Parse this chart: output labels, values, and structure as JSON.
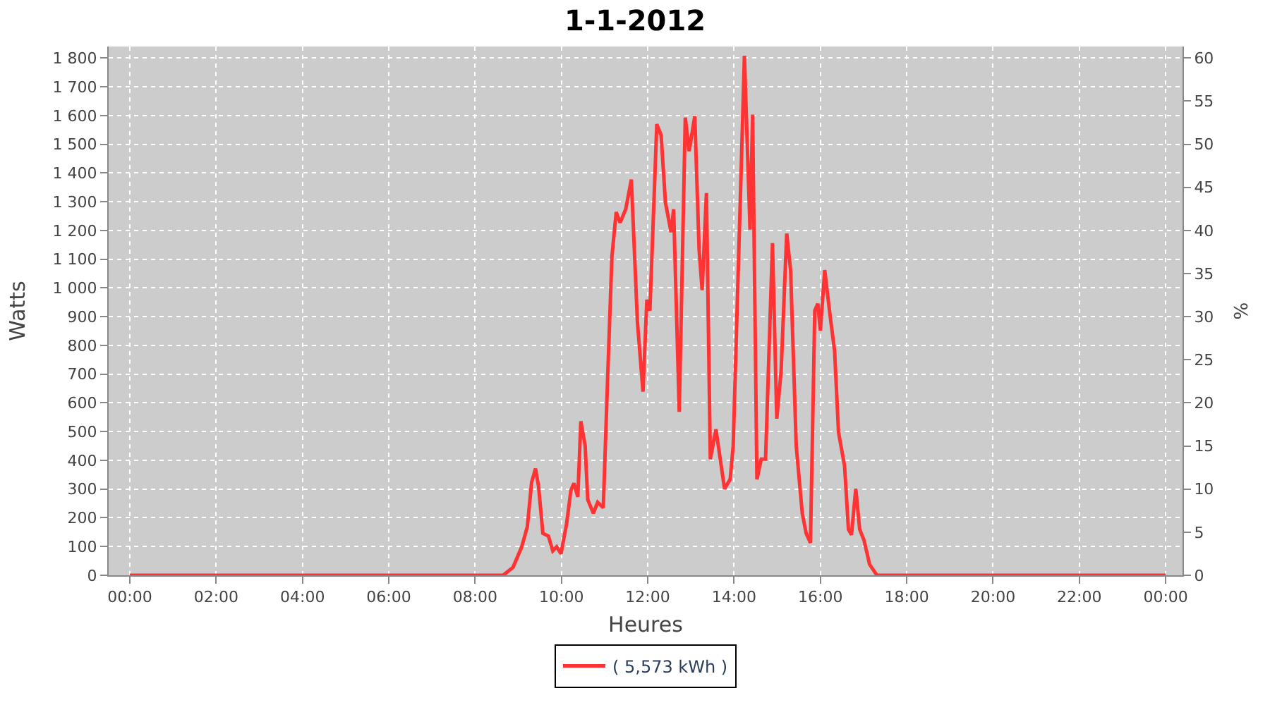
{
  "chart_data": {
    "type": "line",
    "title": "1-1-2012",
    "xlabel": "Heures",
    "ylabel": "Watts",
    "y2label": "%",
    "x": [
      0,
      8.65,
      8.88,
      9.08,
      9.21,
      9.31,
      9.4,
      9.47,
      9.57,
      9.7,
      9.8,
      9.89,
      9.99,
      10.12,
      10.22,
      10.29,
      10.38,
      10.45,
      10.55,
      10.61,
      10.74,
      10.84,
      10.97,
      11.07,
      11.17,
      11.27,
      11.36,
      11.49,
      11.62,
      11.76,
      11.89,
      11.98,
      12.05,
      12.21,
      12.31,
      12.41,
      12.54,
      12.6,
      12.73,
      12.87,
      12.96,
      13.09,
      13.19,
      13.26,
      13.36,
      13.45,
      13.58,
      13.78,
      13.91,
      13.98,
      14.07,
      14.17,
      14.24,
      14.37,
      14.43,
      14.53,
      14.63,
      14.73,
      14.89,
      14.99,
      15.09,
      15.22,
      15.31,
      15.44,
      15.58,
      15.67,
      15.77,
      15.87,
      15.94,
      16.0,
      16.1,
      16.23,
      16.33,
      16.42,
      16.56,
      16.65,
      16.72,
      16.82,
      16.91,
      17.01,
      17.14,
      17.31,
      24
    ],
    "series": [
      {
        "name": "( 5,573 kWh )",
        "color": "#ff3333",
        "values": [
          0,
          0,
          28,
          99,
          169,
          324,
          371,
          310,
          146,
          136,
          85,
          99,
          75,
          179,
          296,
          320,
          273,
          536,
          451,
          263,
          216,
          254,
          235,
          682,
          1109,
          1264,
          1227,
          1274,
          1377,
          884,
          639,
          959,
          921,
          1570,
          1532,
          1297,
          1194,
          1274,
          569,
          1593,
          1476,
          1598,
          1133,
          992,
          1330,
          404,
          508,
          301,
          334,
          451,
          921,
          1438,
          1808,
          1203,
          1603,
          334,
          404,
          404,
          1156,
          545,
          710,
          1189,
          1062,
          451,
          216,
          146,
          113,
          921,
          945,
          851,
          1062,
          898,
          780,
          498,
          381,
          160,
          141,
          301,
          160,
          122,
          38,
          0,
          0
        ]
      }
    ],
    "xlim": [
      -0.49,
      24.39
    ],
    "xticks": [
      {
        "value": 0,
        "label": "00:00"
      },
      {
        "value": 2,
        "label": "02:00"
      },
      {
        "value": 4,
        "label": "04:00"
      },
      {
        "value": 6,
        "label": "06:00"
      },
      {
        "value": 8,
        "label": "08:00"
      },
      {
        "value": 10,
        "label": "10:00"
      },
      {
        "value": 12,
        "label": "12:00"
      },
      {
        "value": 14,
        "label": "14:00"
      },
      {
        "value": 16,
        "label": "16:00"
      },
      {
        "value": 18,
        "label": "18:00"
      },
      {
        "value": 20,
        "label": "20:00"
      },
      {
        "value": 22,
        "label": "22:00"
      },
      {
        "value": 24,
        "label": "00:00"
      }
    ],
    "ylim": [
      0,
      1840
    ],
    "yticks": [
      {
        "value": 0,
        "label": "0"
      },
      {
        "value": 100,
        "label": "100"
      },
      {
        "value": 200,
        "label": "200"
      },
      {
        "value": 300,
        "label": "300"
      },
      {
        "value": 400,
        "label": "400"
      },
      {
        "value": 500,
        "label": "500"
      },
      {
        "value": 600,
        "label": "600"
      },
      {
        "value": 700,
        "label": "700"
      },
      {
        "value": 800,
        "label": "800"
      },
      {
        "value": 900,
        "label": "900"
      },
      {
        "value": 1000,
        "label": "1 000"
      },
      {
        "value": 1100,
        "label": "1 100"
      },
      {
        "value": 1200,
        "label": "1 200"
      },
      {
        "value": 1300,
        "label": "1 300"
      },
      {
        "value": 1400,
        "label": "1 400"
      },
      {
        "value": 1500,
        "label": "1 500"
      },
      {
        "value": 1600,
        "label": "1 600"
      },
      {
        "value": 1700,
        "label": "1 700"
      },
      {
        "value": 1800,
        "label": "1 800"
      }
    ],
    "y2lim": [
      0,
      61.33
    ],
    "y2ticks": [
      0,
      5,
      10,
      15,
      20,
      25,
      30,
      35,
      40,
      45,
      50,
      55,
      60
    ],
    "grid": true,
    "legend": "bottom",
    "marker": "none",
    "line_style": "solid"
  }
}
